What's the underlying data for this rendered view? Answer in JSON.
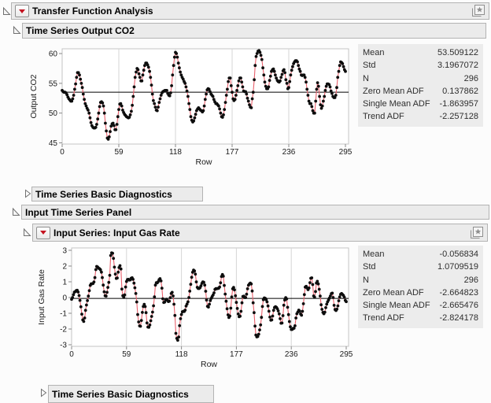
{
  "colors": {
    "header_bg": "#ebebeb",
    "header_border": "#b3b3b3",
    "panel_bg": "#ececec",
    "series_line_red": "#e9606c",
    "marker_black": "#0d0d0d",
    "mean_line": "#000000",
    "gridline": "#d6d6d6",
    "plot_frame": "#c4c4c4",
    "menu_button_red": "#c41320",
    "icon_gray": "#8f8f8f"
  },
  "outline_headers": {
    "transfer_function": {
      "label": "Transfer Function Analysis",
      "state": "open"
    },
    "ts_output": {
      "label": "Time Series Output CO2",
      "state": "open"
    },
    "diagnostics_1": {
      "label": "Time Series Basic Diagnostics",
      "state": "collapsed"
    },
    "input_panel": {
      "label": "Input Time Series Panel",
      "state": "open"
    },
    "input_series": {
      "label": "Input Series: Input Gas Rate",
      "state": "open"
    },
    "diagnostics_2": {
      "label": "Time Series Basic Diagnostics",
      "state": "collapsed"
    }
  },
  "stats_output": {
    "rows": [
      {
        "label": "Mean",
        "value": "53.509122"
      },
      {
        "label": "Std",
        "value": "3.1967072"
      },
      {
        "label": "N",
        "value": "296"
      },
      {
        "label": "Zero Mean ADF",
        "value": "0.137862"
      },
      {
        "label": "Single Mean ADF",
        "value": "-1.863957"
      },
      {
        "label": "Trend ADF",
        "value": "-2.257128"
      }
    ]
  },
  "stats_input": {
    "rows": [
      {
        "label": "Mean",
        "value": "-0.056834"
      },
      {
        "label": "Std",
        "value": "1.0709519"
      },
      {
        "label": "N",
        "value": "296"
      },
      {
        "label": "Zero Mean ADF",
        "value": "-2.664823"
      },
      {
        "label": "Single Mean ADF",
        "value": "-2.665476"
      },
      {
        "label": "Trend ADF",
        "value": "-2.824178"
      }
    ]
  },
  "chart_data": [
    {
      "type": "line",
      "title": "Time Series Output CO2",
      "xlabel": "Row",
      "ylabel": "Output CO2",
      "x_ticks": [
        0,
        59,
        118,
        177,
        236,
        295
      ],
      "y_ticks": [
        45,
        50,
        55,
        60
      ],
      "xlim": [
        0,
        295
      ],
      "ylim": [
        44.8,
        60.8
      ],
      "grid_x": [
        59,
        118,
        177,
        236
      ],
      "ref_line": 53.509122,
      "legend": "none",
      "values": [
        53.8,
        53.6,
        53.5,
        53.5,
        53.4,
        53.1,
        52.7,
        52.4,
        52.2,
        52.0,
        52.0,
        52.4,
        53.0,
        54.0,
        54.9,
        56.0,
        56.8,
        56.8,
        56.4,
        55.7,
        55.0,
        54.3,
        53.2,
        52.3,
        51.6,
        51.2,
        50.8,
        50.5,
        50.0,
        49.2,
        48.4,
        47.9,
        47.6,
        47.5,
        47.5,
        47.6,
        48.1,
        49.0,
        50.0,
        51.1,
        51.8,
        51.9,
        51.7,
        51.2,
        50.0,
        48.3,
        47.0,
        45.8,
        45.6,
        46.0,
        46.9,
        47.8,
        48.2,
        48.3,
        47.9,
        47.2,
        47.2,
        48.1,
        49.4,
        50.6,
        51.5,
        51.6,
        51.2,
        50.5,
        50.1,
        49.8,
        49.6,
        49.4,
        49.3,
        49.2,
        49.3,
        49.7,
        50.3,
        51.3,
        52.8,
        54.4,
        56.0,
        56.9,
        57.5,
        57.3,
        56.6,
        56.0,
        55.4,
        55.4,
        56.4,
        57.2,
        58.0,
        58.4,
        58.4,
        58.1,
        57.7,
        57.0,
        56.0,
        54.7,
        53.2,
        52.1,
        51.6,
        51.0,
        50.5,
        50.4,
        51.0,
        51.8,
        52.4,
        53.0,
        53.4,
        53.6,
        53.7,
        53.8,
        53.8,
        53.8,
        53.3,
        53.0,
        52.9,
        53.4,
        54.6,
        56.4,
        58.0,
        59.4,
        60.2,
        60.0,
        59.4,
        58.4,
        57.6,
        56.9,
        56.4,
        56.0,
        55.7,
        55.3,
        55.0,
        54.4,
        53.7,
        52.8,
        51.6,
        50.6,
        49.4,
        48.8,
        48.5,
        48.7,
        49.2,
        49.8,
        50.4,
        50.7,
        50.9,
        50.7,
        50.5,
        50.4,
        50.2,
        50.4,
        51.2,
        52.3,
        53.2,
        53.9,
        54.1,
        54.0,
        53.6,
        53.2,
        53.0,
        52.8,
        52.3,
        51.9,
        51.6,
        51.6,
        51.4,
        51.2,
        50.7,
        50.0,
        49.4,
        49.3,
        49.7,
        50.6,
        51.8,
        53.0,
        54.0,
        55.3,
        55.9,
        55.9,
        54.6,
        53.5,
        52.4,
        52.1,
        52.3,
        53.0,
        53.8,
        54.6,
        55.4,
        55.9,
        55.9,
        55.2,
        54.4,
        53.7,
        53.6,
        53.6,
        53.2,
        52.5,
        52.0,
        51.4,
        51.0,
        50.9,
        52.4,
        53.5,
        55.6,
        58.0,
        59.5,
        60.0,
        60.4,
        60.5,
        60.2,
        59.7,
        59.0,
        57.6,
        56.4,
        55.2,
        54.5,
        54.1,
        54.1,
        54.4,
        55.5,
        56.2,
        57.0,
        57.3,
        57.4,
        57.0,
        56.4,
        55.9,
        55.5,
        55.3,
        55.2,
        55.4,
        56.0,
        56.5,
        57.1,
        57.3,
        56.8,
        55.6,
        55.0,
        54.1,
        54.3,
        55.3,
        56.4,
        57.2,
        57.8,
        58.3,
        58.6,
        58.8,
        58.8,
        58.6,
        58.0,
        57.4,
        57.0,
        56.4,
        56.3,
        56.4,
        56.4,
        56.0,
        55.2,
        54.0,
        53.0,
        52.0,
        51.6,
        51.6,
        51.1,
        50.4,
        50.0,
        50.0,
        52.0,
        54.0,
        55.1,
        54.5,
        52.8,
        51.4,
        50.8,
        51.2,
        52.0,
        52.8,
        53.8,
        54.5,
        54.9,
        54.9,
        54.8,
        54.4,
        53.7,
        53.3,
        52.8,
        52.6,
        52.6,
        53.0,
        54.3,
        56.0,
        57.0,
        58.0,
        58.6,
        58.5,
        58.3,
        57.8,
        57.3,
        57.0
      ]
    },
    {
      "type": "line",
      "title": "Input Series: Input Gas Rate",
      "xlabel": "Row",
      "ylabel": "Input Gas Rate",
      "x_ticks": [
        0,
        59,
        118,
        177,
        236,
        295
      ],
      "y_ticks": [
        3,
        2,
        1,
        0,
        -1,
        -2,
        -3
      ],
      "xlim": [
        0,
        295
      ],
      "ylim": [
        -3.1,
        3.15
      ],
      "grid_x": [
        59,
        118,
        177,
        236
      ],
      "ref_line": -0.056834,
      "legend": "none",
      "values": [
        -0.109,
        0.0,
        0.178,
        0.339,
        0.373,
        0.441,
        0.461,
        0.348,
        0.127,
        -0.18,
        -0.588,
        -1.055,
        -1.421,
        -1.52,
        -1.302,
        -0.814,
        -0.475,
        -0.193,
        0.088,
        0.435,
        0.771,
        0.866,
        0.875,
        0.891,
        0.987,
        1.263,
        1.775,
        1.976,
        1.934,
        1.866,
        1.832,
        1.767,
        1.608,
        1.265,
        0.79,
        0.36,
        0.115,
        0.088,
        0.331,
        0.645,
        0.96,
        1.409,
        2.67,
        2.834,
        2.812,
        2.483,
        1.929,
        1.485,
        1.214,
        1.239,
        1.608,
        1.905,
        2.023,
        1.815,
        0.535,
        0.122,
        0.009,
        0.164,
        0.671,
        1.019,
        1.146,
        1.155,
        1.112,
        1.121,
        1.223,
        1.257,
        1.157,
        0.913,
        0.62,
        0.255,
        -0.28,
        -1.08,
        -1.551,
        -1.799,
        -1.825,
        -1.456,
        -0.944,
        -0.57,
        -0.431,
        -0.577,
        -0.96,
        -1.616,
        -1.875,
        -1.891,
        -1.746,
        -1.474,
        -1.201,
        -0.927,
        -0.524,
        0.04,
        0.788,
        0.943,
        0.93,
        1.006,
        1.137,
        1.198,
        1.054,
        0.595,
        -0.08,
        -0.314,
        -0.288,
        -0.153,
        -0.109,
        -0.187,
        -0.255,
        -0.229,
        -0.007,
        0.254,
        0.33,
        0.102,
        -0.423,
        -1.139,
        -2.275,
        -2.594,
        -2.716,
        -2.51,
        -1.79,
        -1.346,
        -1.081,
        -0.91,
        -0.876,
        -0.885,
        -0.8,
        -0.544,
        -0.416,
        -0.271,
        0.0,
        0.403,
        0.841,
        1.285,
        1.607,
        1.746,
        1.683,
        1.485,
        0.993,
        0.648,
        0.577,
        0.577,
        0.632,
        0.747,
        0.9,
        0.993,
        0.968,
        0.79,
        0.399,
        -0.161,
        -0.553,
        -0.603,
        -0.424,
        -0.194,
        -0.049,
        0.06,
        0.161,
        0.301,
        0.517,
        0.566,
        0.56,
        0.573,
        0.592,
        0.671,
        0.933,
        1.337,
        1.46,
        1.353,
        0.772,
        0.218,
        -0.237,
        -0.714,
        -1.099,
        -1.269,
        -1.175,
        -0.676,
        0.033,
        0.556,
        0.643,
        0.484,
        0.109,
        -0.31,
        -0.697,
        -1.047,
        -1.218,
        -1.183,
        -0.873,
        -0.336,
        0.063,
        0.084,
        0.0,
        0.001,
        0.209,
        0.556,
        0.782,
        0.858,
        0.918,
        0.862,
        0.416,
        -0.336,
        -0.959,
        -1.813,
        -2.378,
        -2.499,
        -2.473,
        -2.33,
        -2.053,
        -1.739,
        -1.261,
        -0.569,
        -0.137,
        -0.024,
        -0.05,
        -0.135,
        -0.276,
        -0.534,
        -0.871,
        -1.243,
        -1.439,
        -1.422,
        -1.175,
        -0.813,
        -0.634,
        -0.582,
        -0.625,
        -0.713,
        -0.848,
        -1.039,
        -1.346,
        -1.628,
        -1.619,
        -1.149,
        -0.488,
        -0.16,
        -0.007,
        -0.092,
        -0.62,
        -1.086,
        -1.525,
        -1.858,
        -2.029,
        -2.024,
        -1.961,
        -1.952,
        -1.794,
        -1.302,
        -1.03,
        -0.918,
        -0.798,
        -0.867,
        -1.047,
        -1.123,
        -0.876,
        -0.395,
        0.185,
        0.662,
        0.709,
        0.605,
        0.501,
        0.603,
        0.943,
        1.223,
        1.249,
        0.824,
        0.102,
        0.025,
        0.382,
        0.922,
        1.032,
        0.866,
        0.527,
        0.093,
        -0.458,
        -0.748,
        -0.947,
        -1.029,
        -0.928,
        -0.645,
        -0.424,
        -0.276,
        -0.158,
        -0.033,
        0.102,
        0.251,
        0.28,
        0.0,
        -0.493,
        -0.759,
        -0.824,
        -0.74,
        -0.528,
        -0.204,
        0.034,
        0.204,
        0.253,
        0.195,
        0.131,
        0.017,
        -0.182,
        -0.262
      ]
    }
  ]
}
